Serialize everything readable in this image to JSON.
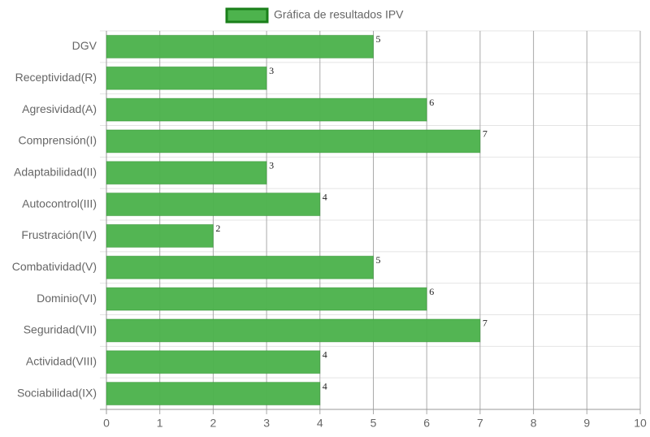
{
  "chart_data": {
    "type": "bar",
    "orientation": "horizontal",
    "legend": "Gráfica de resultados IPV",
    "legend_position": "top",
    "categories": [
      "DGV",
      "Receptividad(R)",
      "Agresividad(A)",
      "Comprensión(I)",
      "Adaptabilidad(II)",
      "Autocontrol(III)",
      "Frustración(IV)",
      "Combatividad(V)",
      "Dominio(VI)",
      "Seguridad(VII)",
      "Actividad(VIII)",
      "Sociabilidad(IX)"
    ],
    "values": [
      5,
      3,
      6,
      7,
      3,
      4,
      2,
      5,
      6,
      7,
      4,
      4
    ],
    "color": "#4db34d",
    "border_color": "#1a7f1a",
    "xlim": [
      0,
      10
    ],
    "xticks": [
      0,
      1,
      2,
      3,
      4,
      5,
      6,
      7,
      8,
      9,
      10
    ],
    "grid": true
  }
}
